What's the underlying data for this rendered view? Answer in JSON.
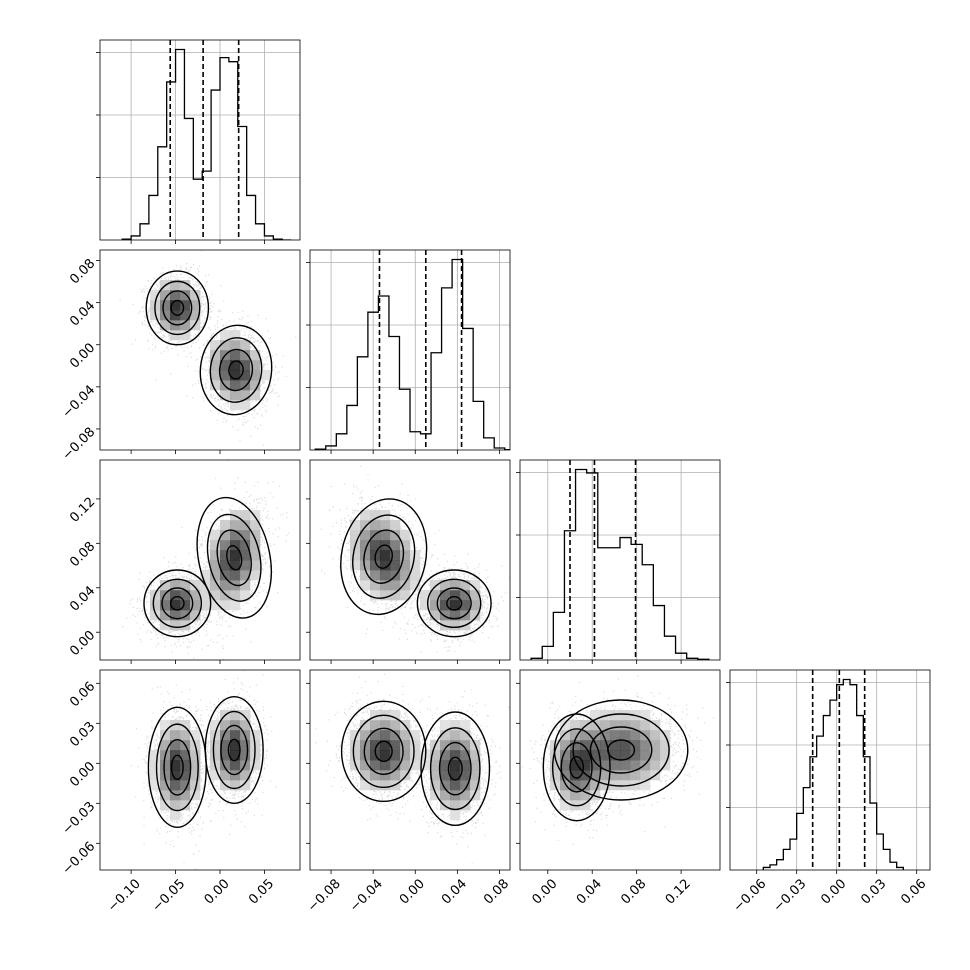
{
  "chart_data": {
    "type": "corner",
    "n_params": 4,
    "params": [
      {
        "range": [
          -0.135,
          0.09
        ],
        "ticks": [
          -0.1,
          -0.05,
          0.0,
          0.05
        ],
        "tick_labels": [
          "−0.10",
          "−0.05",
          "0.00",
          "0.05"
        ],
        "quantiles": [
          -0.056,
          -0.019,
          0.021
        ],
        "hist": {
          "edges": [
            -0.11,
            -0.1,
            -0.09,
            -0.08,
            -0.07,
            -0.06,
            -0.05,
            -0.04,
            -0.03,
            -0.02,
            -0.01,
            0.0,
            0.01,
            0.02,
            0.03,
            0.04,
            0.05,
            0.06,
            0.07,
            0.08
          ],
          "counts": [
            2,
            10,
            40,
            110,
            230,
            390,
            470,
            300,
            150,
            170,
            370,
            450,
            440,
            280,
            110,
            40,
            10,
            2,
            0
          ]
        }
      },
      {
        "range": [
          -0.1,
          0.09
        ],
        "ticks": [
          -0.08,
          -0.04,
          0.0,
          0.04,
          0.08
        ],
        "tick_labels": [
          "−0.08",
          "−0.04",
          "0.00",
          "0.04",
          "0.08"
        ],
        "quantiles": [
          -0.034,
          0.01,
          0.044
        ],
        "hist": {
          "edges": [
            -0.095,
            -0.085,
            -0.075,
            -0.065,
            -0.055,
            -0.045,
            -0.035,
            -0.025,
            -0.015,
            -0.005,
            0.005,
            0.015,
            0.025,
            0.035,
            0.045,
            0.055,
            0.065,
            0.075,
            0.085,
            0.095
          ],
          "counts": [
            2,
            10,
            40,
            110,
            230,
            340,
            380,
            280,
            150,
            45,
            40,
            240,
            400,
            470,
            300,
            120,
            30,
            5,
            1
          ]
        }
      },
      {
        "range": [
          -0.025,
          0.155
        ],
        "ticks": [
          0.0,
          0.04,
          0.08,
          0.12
        ],
        "tick_labels": [
          "0.00",
          "0.04",
          "0.08",
          "0.12"
        ],
        "quantiles": [
          0.02,
          0.042,
          0.079
        ],
        "hist": {
          "edges": [
            -0.015,
            -0.005,
            0.005,
            0.015,
            0.025,
            0.035,
            0.045,
            0.055,
            0.065,
            0.075,
            0.085,
            0.095,
            0.105,
            0.115,
            0.125,
            0.135,
            0.145
          ],
          "counts": [
            5,
            40,
            140,
            380,
            560,
            550,
            330,
            330,
            360,
            340,
            280,
            160,
            70,
            20,
            5,
            2
          ]
        }
      },
      {
        "range": [
          -0.08,
          0.07
        ],
        "ticks": [
          -0.06,
          -0.03,
          0.0,
          0.03,
          0.06
        ],
        "tick_labels": [
          "−0.06",
          "−0.03",
          "0.00",
          "0.03",
          "0.06"
        ],
        "quantiles": [
          -0.018,
          0.002,
          0.021
        ],
        "hist": {
          "edges": [
            -0.055,
            -0.05,
            -0.045,
            -0.04,
            -0.035,
            -0.03,
            -0.025,
            -0.02,
            -0.015,
            -0.01,
            -0.005,
            0.0,
            0.005,
            0.01,
            0.015,
            0.02,
            0.025,
            0.03,
            0.035,
            0.04,
            0.045,
            0.05
          ],
          "counts": [
            5,
            10,
            20,
            40,
            60,
            110,
            160,
            220,
            260,
            300,
            330,
            360,
            370,
            360,
            300,
            220,
            130,
            70,
            40,
            15,
            5
          ]
        }
      }
    ],
    "pair_clusters": {
      "1_0": [
        {
          "cx": -0.048,
          "cy": 0.035,
          "sx": 0.014,
          "sy": 0.014,
          "rho": 0
        },
        {
          "cx": 0.018,
          "cy": -0.024,
          "sx": 0.016,
          "sy": 0.017,
          "rho": -0.15
        }
      ],
      "2_0": [
        {
          "cx": -0.048,
          "cy": 0.026,
          "sx": 0.015,
          "sy": 0.012,
          "rho": 0
        },
        {
          "cx": 0.016,
          "cy": 0.067,
          "sx": 0.016,
          "sy": 0.022,
          "rho": 0.3
        }
      ],
      "2_1": [
        {
          "cx": -0.03,
          "cy": 0.068,
          "sx": 0.016,
          "sy": 0.021,
          "rho": -0.3
        },
        {
          "cx": 0.037,
          "cy": 0.026,
          "sx": 0.014,
          "sy": 0.012,
          "rho": 0
        }
      ],
      "3_0": [
        {
          "cx": -0.048,
          "cy": -0.003,
          "sx": 0.013,
          "sy": 0.018,
          "rho": 0
        },
        {
          "cx": 0.016,
          "cy": 0.01,
          "sx": 0.013,
          "sy": 0.016,
          "rho": 0
        }
      ],
      "3_1": [
        {
          "cx": -0.03,
          "cy": 0.009,
          "sx": 0.016,
          "sy": 0.015,
          "rho": 0
        },
        {
          "cx": 0.038,
          "cy": -0.004,
          "sx": 0.013,
          "sy": 0.017,
          "rho": 0
        }
      ],
      "3_2": [
        {
          "cx": 0.026,
          "cy": -0.003,
          "sx": 0.012,
          "sy": 0.016,
          "rho": 0
        },
        {
          "cx": 0.066,
          "cy": 0.01,
          "sx": 0.024,
          "sy": 0.015,
          "rho": 0
        }
      ]
    }
  }
}
